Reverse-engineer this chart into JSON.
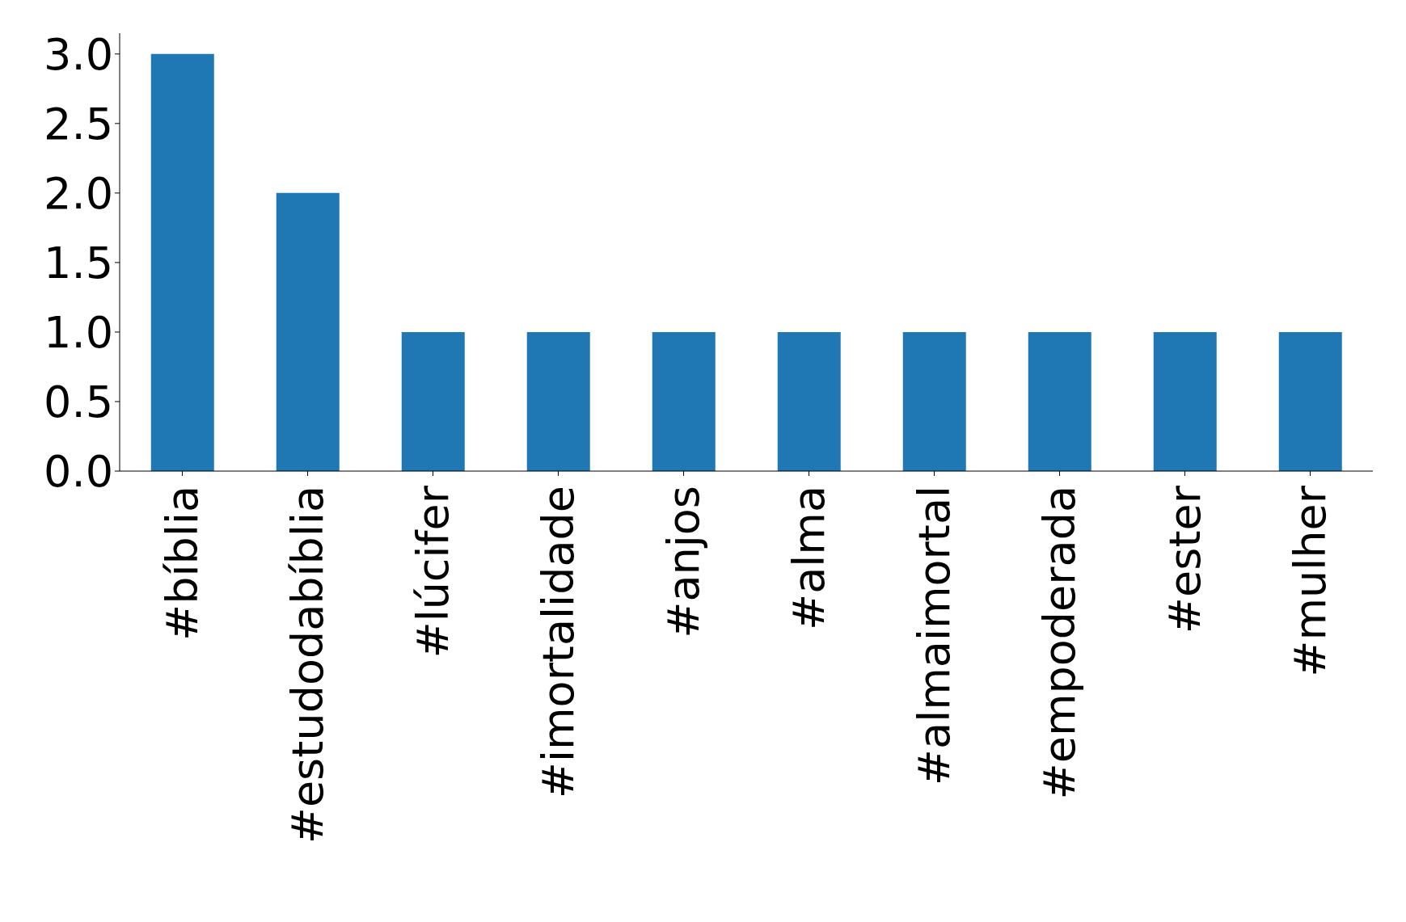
{
  "chart_data": {
    "type": "bar",
    "categories": [
      "#bíblia",
      "#estudodabíblia",
      "#lúcifer",
      "#imortalidade",
      "#anjos",
      "#alma",
      "#almaimortal",
      "#empoderada",
      "#ester",
      "#mulher"
    ],
    "values": [
      3,
      2,
      1,
      1,
      1,
      1,
      1,
      1,
      1,
      1
    ],
    "color": "#1f77b4",
    "ylim": [
      0,
      3.15
    ],
    "yticks": [
      {
        "value": 0,
        "label": "0.0"
      },
      {
        "value": 0.5,
        "label": "0.5"
      },
      {
        "value": 1,
        "label": "1.0"
      },
      {
        "value": 1.5,
        "label": "1.5"
      },
      {
        "value": 2,
        "label": "2.0"
      },
      {
        "value": 2.5,
        "label": "2.5"
      },
      {
        "value": 3,
        "label": "3.0"
      }
    ]
  }
}
